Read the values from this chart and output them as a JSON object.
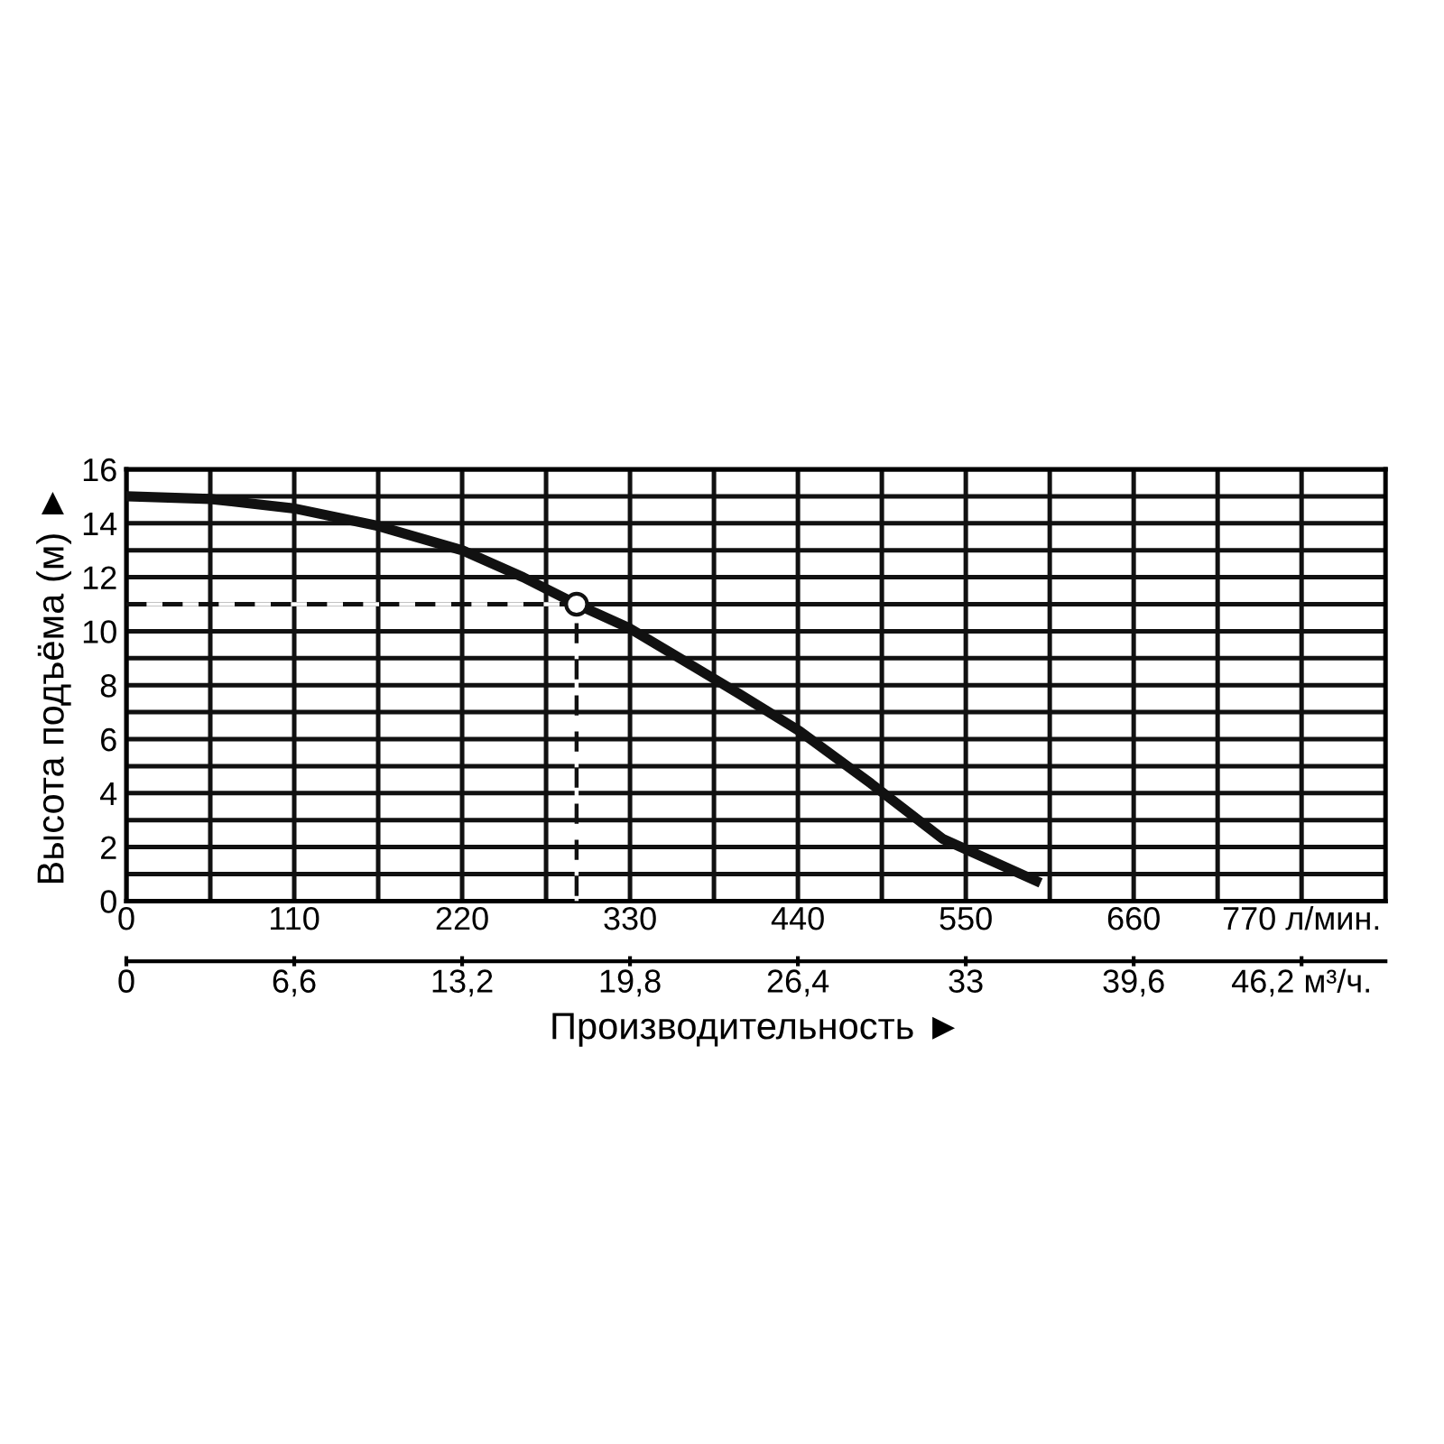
{
  "chart_data": {
    "type": "line",
    "xlabel": "Производительность ►",
    "ylabel": "Высота подъёма (м) ►",
    "series": [
      {
        "color": "#111111",
        "x": [
          0,
          55,
          110,
          165,
          220,
          260,
          295,
          330,
          401,
          441,
          488,
          535,
          596
        ],
        "values": [
          15,
          14.9,
          14.55,
          13.9,
          13.0,
          12.0,
          11,
          10.1,
          7.7,
          6.3,
          4.35,
          2.3,
          0.75
        ]
      },
      {
        "type": "line",
        "line_style": "dashed",
        "color": "#111111",
        "x": [
          0,
          295,
          295
        ],
        "values": [
          11,
          11,
          0
        ]
      },
      {
        "type": "scatter",
        "marker": "circle",
        "color": "#ffffff",
        "x": [
          295
        ],
        "values": [
          11
        ]
      }
    ],
    "xlim": [
      0,
      825
    ],
    "ylim": [
      0,
      16
    ],
    "xticks": [
      0,
      {
        "value": 55,
        "label": null
      },
      110,
      {
        "value": 165,
        "label": null
      },
      220,
      {
        "value": 275,
        "label": null
      },
      330,
      {
        "value": 385,
        "label": null
      },
      440,
      {
        "value": 495,
        "label": null
      },
      550,
      {
        "value": 605,
        "label": null
      },
      660,
      {
        "value": 715,
        "label": null
      },
      {
        "value": 770,
        "label": "770 л/мин."
      }
    ],
    "yticks": [
      0,
      {
        "value": 1,
        "label": null
      },
      2,
      {
        "value": 3,
        "label": null
      },
      4,
      {
        "value": 5,
        "label": null
      },
      6,
      {
        "value": 7,
        "label": null
      },
      8,
      {
        "value": 9,
        "label": null
      },
      10,
      {
        "value": 11,
        "label": null
      },
      12,
      {
        "value": 13,
        "label": null
      },
      14,
      {
        "value": 15,
        "label": null
      },
      16
    ],
    "x2lim": [
      0,
      49.5
    ],
    "x2ticks": [
      0,
      {
        "value": 6.6,
        "label": "6,6"
      },
      {
        "value": 13.2,
        "label": "13,2"
      },
      {
        "value": 19.8,
        "label": "19,8"
      },
      {
        "value": 26.4,
        "label": "26,4"
      },
      33,
      {
        "value": 39.6,
        "label": "39,6"
      },
      {
        "value": 46.2,
        "label": "46,2 м³/ч."
      }
    ],
    "grid": true,
    "line_style": "solid",
    "legend": false
  }
}
